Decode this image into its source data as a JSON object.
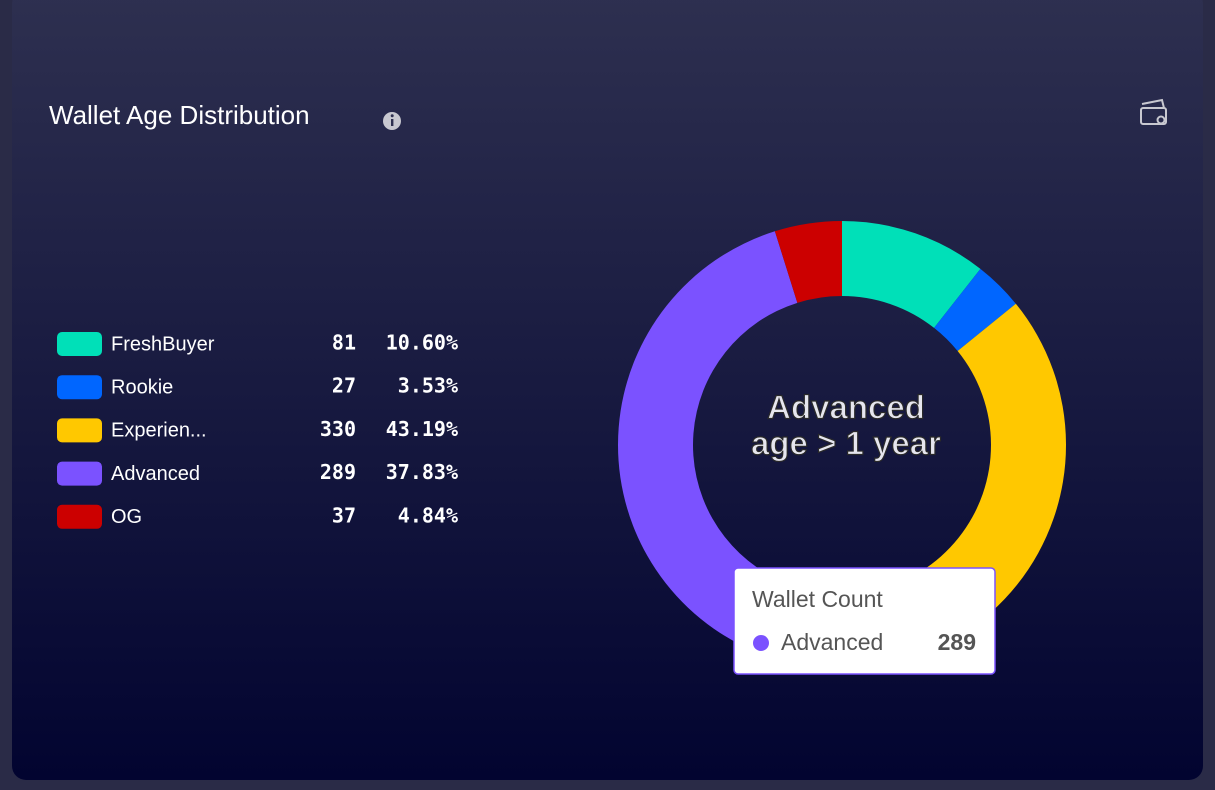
{
  "chart_data": {
    "type": "pie",
    "title": "Wallet Age Distribution",
    "categories": [
      "FreshBuyer",
      "Rookie",
      "Experien...",
      "Advanced",
      "OG"
    ],
    "values": [
      81,
      27,
      330,
      289,
      37
    ],
    "percent_labels": [
      "10.60%",
      "3.53%",
      "43.19%",
      "37.83%",
      "4.84%"
    ],
    "colors": [
      "#00e0b8",
      "#0066ff",
      "#ffc800",
      "#7b52ff",
      "#cc0000"
    ],
    "center_label": [
      "Advanced",
      "age > 1 year"
    ],
    "tooltip": {
      "title": "Wallet Count",
      "name": "Advanced",
      "value": 289
    }
  }
}
